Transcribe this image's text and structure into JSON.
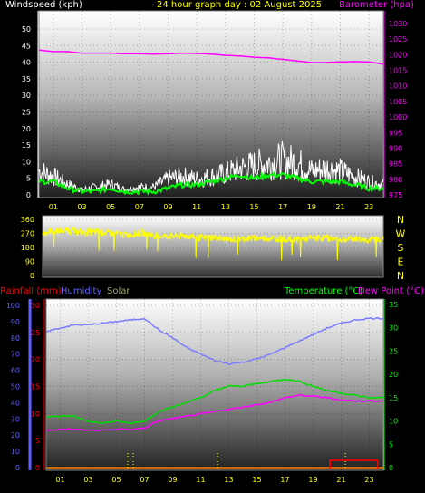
{
  "header": {
    "left_title": "Windspeed (kph)",
    "center_title": "24 hour graph day : 02 August 2025",
    "right_title": "Barometer (hpa)",
    "bottom_labels": {
      "rainfall": "Rainfall (mm)",
      "humidity": "Humidity",
      "solar": "Solar",
      "temperature": "Temperature (°C)",
      "dew_point": "Dew Point (°C)"
    }
  },
  "colors": {
    "wind": "#ffffff",
    "wind_avg": "#00ff00",
    "barometer": "#ff00ff",
    "direction": "#ffff00",
    "humidity": "#7b7bff",
    "temperature": "#00dd00",
    "dew_point": "#ff00ff",
    "rain": "#ff0000",
    "solar": "#ffff00",
    "text_white": "#ffffff",
    "text_yellow": "#ffff00",
    "text_magenta": "#ff00ff",
    "text_green": "#00ff00",
    "text_red": "#ff0000",
    "text_blue": "#6060ff",
    "text_olive": "#a0a060",
    "zero_line": "#ff8000"
  },
  "chart_data": [
    {
      "type": "line",
      "panel": "wind_barometer",
      "x_ticks": [
        "01",
        "03",
        "05",
        "07",
        "09",
        "11",
        "13",
        "15",
        "17",
        "19",
        "21",
        "23"
      ],
      "y_left_ticks": [
        "0",
        "5",
        "10",
        "15",
        "20",
        "25",
        "30",
        "35",
        "40",
        "45",
        "50"
      ],
      "y_right_ticks": [
        "975",
        "980",
        "985",
        "990",
        "995",
        "1000",
        "1005",
        "1010",
        "1015",
        "1020",
        "1025",
        "1030"
      ],
      "ylim_left": [
        0,
        50
      ],
      "ylim_right": [
        975,
        1030
      ],
      "x_hours": [
        0,
        1,
        2,
        3,
        4,
        5,
        6,
        7,
        8,
        9,
        10,
        11,
        12,
        13,
        14,
        15,
        16,
        17,
        18,
        19,
        20,
        21,
        22,
        23,
        24
      ],
      "series": [
        {
          "role": "gust",
          "values": [
            9,
            7,
            4,
            2,
            3,
            4,
            2,
            3,
            3,
            6,
            7,
            6,
            7,
            8,
            10,
            11,
            12,
            13,
            12,
            9,
            10,
            9,
            7,
            5,
            4
          ]
        },
        {
          "role": "average",
          "values": [
            4,
            4,
            2,
            1,
            1,
            2,
            1,
            1,
            1,
            2,
            3,
            3,
            4,
            5,
            6,
            5,
            6,
            6,
            5,
            4,
            4,
            4,
            3,
            2,
            2
          ]
        },
        {
          "role": "barometer",
          "values": [
            1021.5,
            1021,
            1021,
            1020.5,
            1020.5,
            1020.5,
            1020.3,
            1020.3,
            1020.2,
            1020.3,
            1020.5,
            1020.4,
            1020.2,
            1019.8,
            1019.6,
            1019.2,
            1019,
            1018.5,
            1018,
            1017.5,
            1017.5,
            1017.7,
            1017.8,
            1017.7,
            1017
          ]
        }
      ]
    },
    {
      "type": "scatter",
      "panel": "wind_direction",
      "y_left_ticks": [
        "0",
        "90",
        "180",
        "270",
        "360"
      ],
      "y_right_ticks": [
        "N",
        "W",
        "S",
        "E",
        "N"
      ],
      "ylim": [
        0,
        360
      ],
      "x_hours": [
        0,
        1,
        2,
        3,
        4,
        5,
        6,
        7,
        8,
        9,
        10,
        11,
        12,
        13,
        14,
        15,
        16,
        17,
        18,
        19,
        20,
        21,
        22,
        23,
        24
      ],
      "values": [
        270,
        290,
        285,
        275,
        280,
        270,
        260,
        275,
        255,
        250,
        255,
        240,
        245,
        230,
        235,
        240,
        240,
        235,
        230,
        240,
        240,
        230,
        235,
        230,
        235
      ]
    },
    {
      "type": "line",
      "panel": "temp_humidity_rain",
      "x_ticks": [
        "01",
        "03",
        "05",
        "07",
        "09",
        "11",
        "13",
        "15",
        "17",
        "19",
        "21",
        "23"
      ],
      "y_humidity_ticks": [
        "0",
        "10",
        "20",
        "30",
        "40",
        "50",
        "60",
        "70",
        "80",
        "90",
        "100"
      ],
      "y_rain_ticks": [
        "0",
        "5",
        "10",
        "15",
        "20",
        "25",
        "30"
      ],
      "y_temp_ticks": [
        "0",
        "5",
        "10",
        "15",
        "20",
        "25",
        "30",
        "35"
      ],
      "ylim_humidity": [
        0,
        100
      ],
      "ylim_rain": [
        0,
        30
      ],
      "ylim_temp": [
        0,
        35
      ],
      "x_hours": [
        0,
        1,
        2,
        3,
        4,
        5,
        6,
        7,
        8,
        9,
        10,
        11,
        12,
        13,
        14,
        15,
        16,
        17,
        18,
        19,
        20,
        21,
        22,
        23,
        24
      ],
      "series": [
        {
          "role": "humidity",
          "values": [
            84,
            86,
            88,
            88,
            89,
            90,
            91,
            92,
            85,
            80,
            74,
            70,
            66,
            64,
            65,
            67,
            70,
            74,
            78,
            82,
            86,
            89,
            91,
            92,
            92
          ]
        },
        {
          "role": "temperature",
          "values": [
            11,
            11,
            11,
            10,
            9.5,
            10,
            9.5,
            10,
            12,
            13,
            14,
            15,
            16.5,
            17.5,
            17.5,
            18,
            18.5,
            19,
            18.5,
            17.5,
            16.5,
            16,
            15.5,
            15,
            15
          ]
        },
        {
          "role": "dew_point",
          "values": [
            8,
            8.2,
            8.2,
            8,
            8,
            8.2,
            8.2,
            8.5,
            10,
            10.5,
            11,
            11.5,
            12,
            12.5,
            13,
            13.5,
            14,
            15,
            15.5,
            15.3,
            15,
            14.5,
            14.3,
            14.3,
            14.3
          ]
        },
        {
          "role": "rain",
          "values": [
            0,
            0,
            0,
            0,
            0,
            0,
            0,
            0,
            0,
            0,
            0,
            0,
            0,
            0,
            0,
            0,
            0,
            0,
            0,
            0,
            0,
            0,
            0,
            0,
            0
          ]
        }
      ],
      "solar_marks_hours": [
        5.8,
        6.2,
        12.2,
        21.3
      ]
    }
  ]
}
